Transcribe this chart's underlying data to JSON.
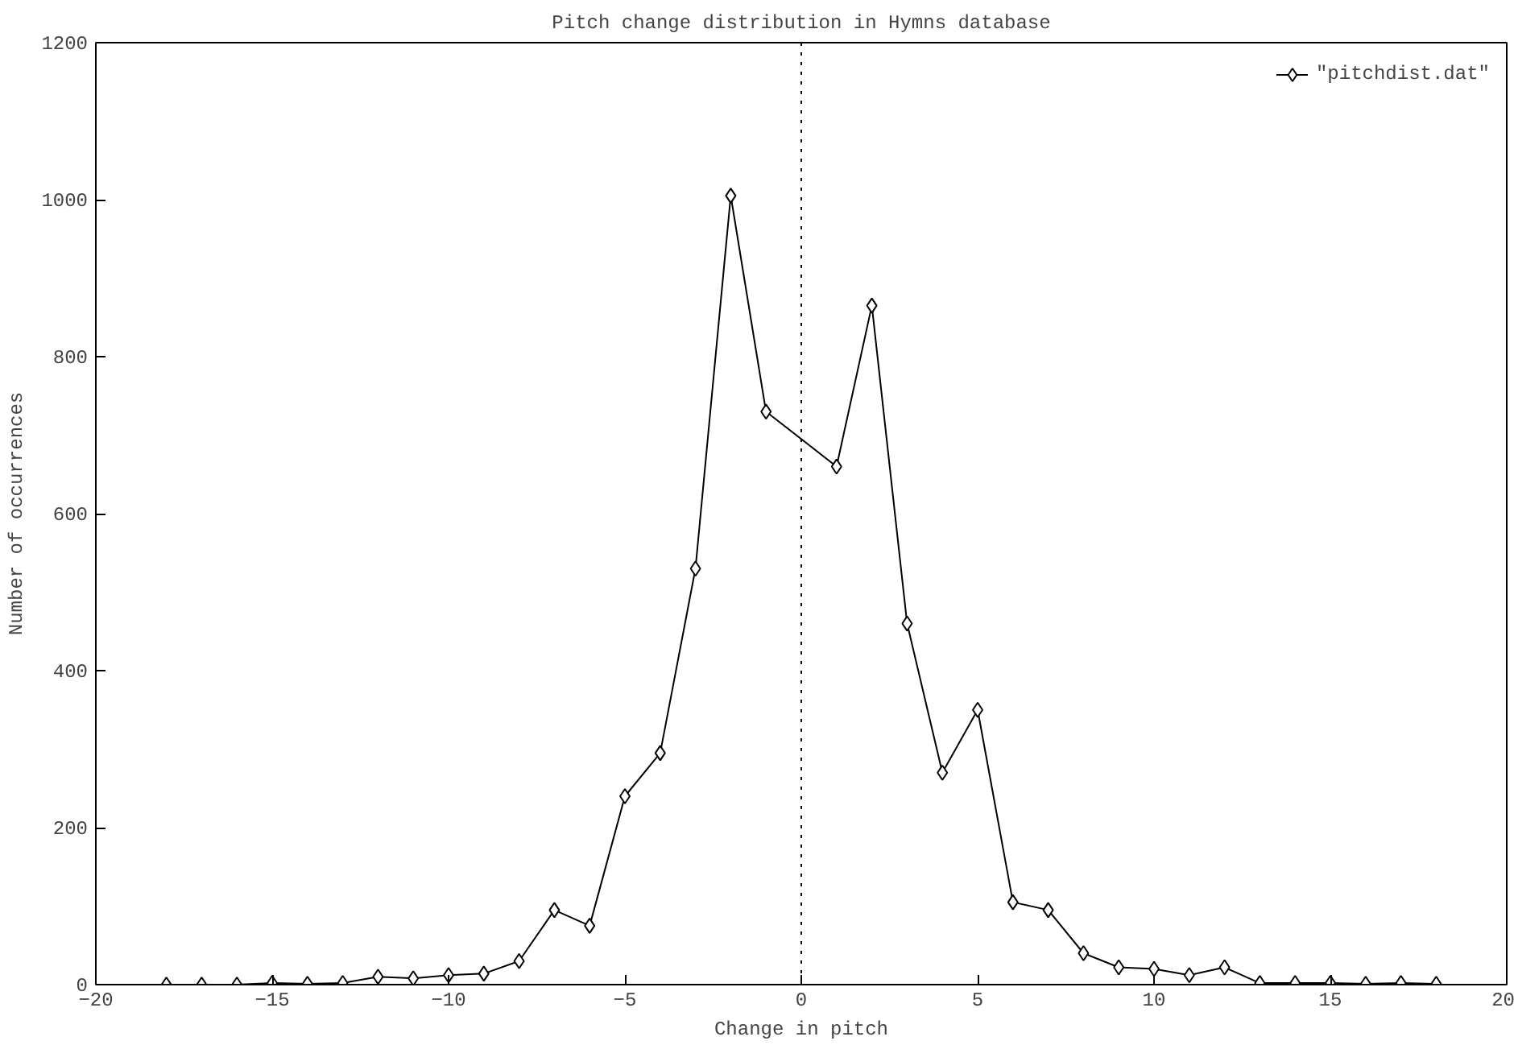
{
  "chart_data": {
    "type": "line",
    "title": "Pitch change distribution in Hymns database",
    "xlabel": "Change in pitch",
    "ylabel": "Number of occurrences",
    "x": [
      -18,
      -17,
      -16,
      -15,
      -14,
      -13,
      -12,
      -11,
      -10,
      -9,
      -8,
      -7,
      -6,
      -5,
      -4,
      -3,
      -2,
      -1,
      1,
      2,
      3,
      4,
      5,
      6,
      7,
      8,
      9,
      10,
      11,
      12,
      13,
      14,
      15,
      16,
      17,
      18
    ],
    "series": [
      {
        "name": "\"pitchdist.dat\"",
        "color": "#000000",
        "values": [
          0,
          0,
          0,
          2,
          1,
          2,
          10,
          8,
          12,
          14,
          30,
          95,
          75,
          240,
          295,
          530,
          1005,
          730,
          660,
          865,
          460,
          270,
          350,
          105,
          95,
          40,
          22,
          20,
          12,
          22,
          2,
          2,
          2,
          1,
          2,
          1
        ]
      }
    ],
    "xlim": [
      -20,
      20
    ],
    "xticks": [
      -20,
      -15,
      -10,
      -5,
      0,
      5,
      10,
      15,
      20
    ],
    "ylim": [
      0,
      1200
    ],
    "yticks": [
      0,
      200,
      400,
      600,
      800,
      1000,
      1200
    ],
    "ref_lines": [
      {
        "axis": "x",
        "value": 0,
        "label": null,
        "color": "#000000",
        "line_style": "dotted"
      }
    ],
    "grid": false,
    "legend": "top right",
    "marker": "diamond",
    "line_style": "solid"
  }
}
